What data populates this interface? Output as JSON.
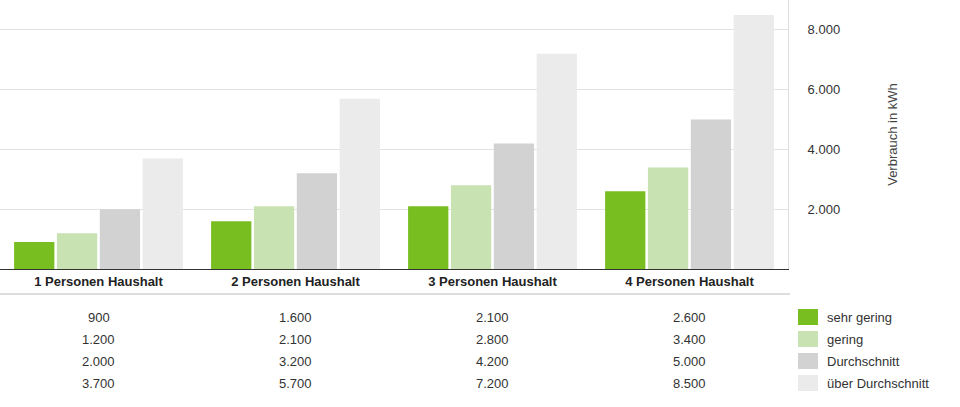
{
  "chart_data": {
    "type": "bar",
    "categories": [
      "1 Personen Haushalt",
      "2 Personen Haushalt",
      "3 Personen Haushalt",
      "4 Personen Haushalt"
    ],
    "series": [
      {
        "name": "sehr gering",
        "color": "#78be20",
        "values": [
          900,
          1600,
          2100,
          2600
        ],
        "value_labels": [
          "900",
          "1.600",
          "2.100",
          "2.600"
        ]
      },
      {
        "name": "gering",
        "color": "#c8e2b1",
        "values": [
          1200,
          2100,
          2800,
          3400
        ],
        "value_labels": [
          "1.200",
          "2.100",
          "2.800",
          "3.400"
        ]
      },
      {
        "name": "Durchschnitt",
        "color": "#d2d2d2",
        "values": [
          2000,
          3200,
          4200,
          5000
        ],
        "value_labels": [
          "2.000",
          "3.200",
          "4.200",
          "5.000"
        ]
      },
      {
        "name": "über Durchschnitt",
        "color": "#ebebeb",
        "values": [
          3700,
          5700,
          7200,
          8500
        ],
        "value_labels": [
          "3.700",
          "5.700",
          "7.200",
          "8.500"
        ]
      }
    ],
    "ylabel": "Verbrauch in kWh",
    "ylim": [
      0,
      9000
    ],
    "yticks": [
      {
        "value": 2000,
        "label": "2.000"
      },
      {
        "value": 4000,
        "label": "4.000"
      },
      {
        "value": 6000,
        "label": "6.000"
      },
      {
        "value": 8000,
        "label": "8.000"
      }
    ],
    "grid": true
  }
}
